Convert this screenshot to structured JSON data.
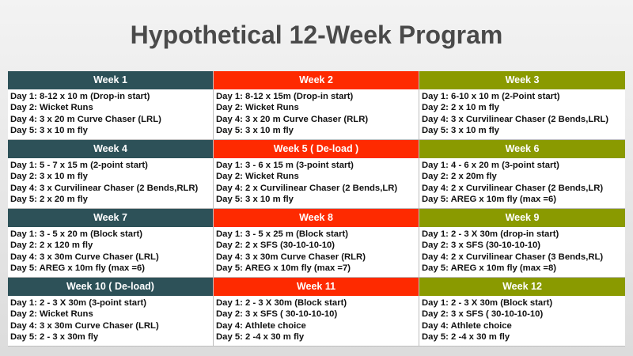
{
  "title": "Hypothetical 12-Week Program",
  "colors": {
    "col1": "#2d5158",
    "col2": "#fe2a00",
    "col3": "#8a9a00"
  },
  "weeks": [
    {
      "header": "Week 1",
      "days": [
        "Day 1: 8-12 x 10 m (Drop-in start)",
        "Day 2: Wicket Runs",
        "Day 4: 3 x 20 m Curve Chaser (LRL)",
        "Day 5: 3 x 10 m fly"
      ]
    },
    {
      "header": "Week 2",
      "days": [
        "Day 1: 8-12 x 15m (Drop-in start)",
        "Day 2: Wicket Runs",
        "Day 4: 3 x 20 m Curve Chaser (RLR)",
        "Day 5: 3 x 10 m fly"
      ]
    },
    {
      "header": "Week 3",
      "days": [
        "Day 1: 6-10 x 10 m (2-Point start)",
        "Day 2: 2 x 10 m fly",
        "Day 4: 3 x Curvilinear Chaser (2 Bends,LRL)",
        "Day 5: 3 x 10 m fly"
      ]
    },
    {
      "header": "Week 4",
      "days": [
        "Day 1: 5 - 7 x 15 m (2-point start)",
        "Day 2: 3 x 10 m fly",
        "Day 4: 3 x Curvilinear Chaser (2 Bends,RLR)",
        "Day 5: 2 x 20 m fly"
      ]
    },
    {
      "header": "Week 5 ( De-load )",
      "days": [
        "Day 1: 3 - 6 x 15 m (3-point start)",
        "Day 2: Wicket Runs",
        "Day 4: 2 x Curvilinear Chaser (2 Bends,LR)",
        "Day 5: 3 x 10 m fly"
      ]
    },
    {
      "header": "Week 6",
      "days": [
        "Day 1: 4 - 6 x 20 m (3-point start)",
        "Day 2: 2 x 20m fly",
        "Day 4: 2 x Curvilinear Chaser (2 Bends,LR)",
        "Day 5: AREG x 10m fly (max =6)"
      ]
    },
    {
      "header": "Week 7",
      "days": [
        "Day 1: 3 - 5 x 20 m (Block start)",
        "Day 2: 2 x 120 m fly",
        "Day 4: 3 x 30m Curve Chaser (LRL)",
        "Day 5: AREG x 10m fly (max =6)"
      ]
    },
    {
      "header": "Week 8",
      "days": [
        "Day 1: 3 - 5 x 25 m (Block start)",
        "Day 2: 2 x SFS (30-10-10-10)",
        "Day 4: 3 x 30m Curve Chaser (RLR)",
        "Day 5: AREG x 10m fly (max =7)"
      ]
    },
    {
      "header": "Week 9",
      "days": [
        "Day 1: 2 - 3 X 30m (drop-in start)",
        "Day 2: 3 x SFS (30-10-10-10)",
        "Day 4: 2 x Curvilinear Chaser (3 Bends,RL)",
        "Day 5: AREG x 10m fly (max =8)"
      ]
    },
    {
      "header": "Week 10 ( De-load)",
      "days": [
        "Day 1: 2 - 3 X 30m (3-point start)",
        "Day 2: Wicket Runs",
        "Day 4: 3 x 30m Curve Chaser (LRL)",
        "Day 5: 2 - 3 x 30m fly"
      ]
    },
    {
      "header": "Week 11",
      "days": [
        "Day 1: 2 - 3 X 30m (Block start)",
        "Day 2: 3 x SFS ( 30-10-10-10)",
        "Day 4: Athlete choice",
        "Day 5: 2 -4 x 30 m fly"
      ]
    },
    {
      "header": "Week 12",
      "days": [
        "Day 1: 2 - 3 X 30m (Block start)",
        "Day 2: 3 x SFS ( 30-10-10-10)",
        "Day 4: Athlete choice",
        "Day 5: 2 -4 x 30 m fly"
      ]
    }
  ]
}
